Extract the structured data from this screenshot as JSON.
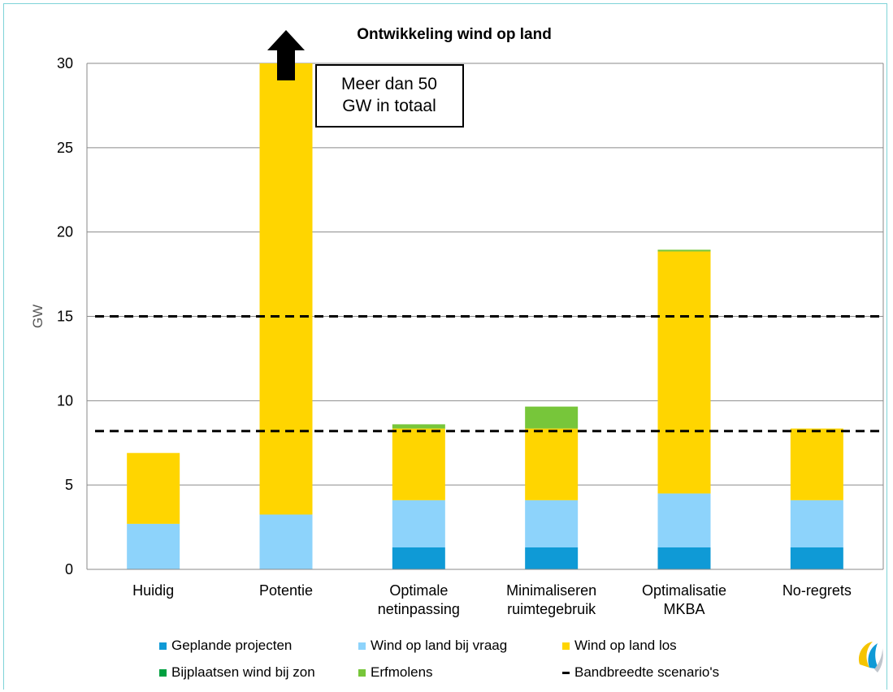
{
  "chart_data": {
    "type": "bar",
    "stacked": true,
    "title": "Ontwikkeling wind op land",
    "ylabel": "GW",
    "xlabel": "",
    "ylim": [
      0,
      30
    ],
    "yticks": [
      "0",
      "5",
      "10",
      "15",
      "20",
      "25",
      "30"
    ],
    "grid": true,
    "categories": [
      "Huidig",
      "Potentie",
      "Optimale netinpassing",
      "Minimaliseren ruimtegebruik",
      "Optimalisatie MKBA",
      "No-regrets"
    ],
    "category_lines": [
      [
        "Huidig"
      ],
      [
        "Potentie"
      ],
      [
        "Optimale",
        "netinpassing"
      ],
      [
        "Minimaliseren",
        "ruimtegebruik"
      ],
      [
        "Optimalisatie",
        "MKBA"
      ],
      [
        "No-regrets"
      ]
    ],
    "series": [
      {
        "name": "Geplande projecten",
        "color": "#0f9ad6",
        "values": [
          0,
          0,
          1.3,
          1.3,
          1.3,
          1.3
        ]
      },
      {
        "name": "Wind op land bij vraag",
        "color": "#8dd3fb",
        "values": [
          2.7,
          3.25,
          2.8,
          2.8,
          3.2,
          2.8
        ]
      },
      {
        "name": "Wind op land los",
        "color": "#ffd500",
        "values": [
          4.2,
          26.75,
          4.25,
          4.25,
          14.35,
          4.25
        ]
      },
      {
        "name": "Bijplaatsen wind bij zon",
        "color": "#00a040",
        "values": [
          0,
          0,
          0,
          0,
          0,
          0
        ]
      },
      {
        "name": "Erfmolens",
        "color": "#77c63a",
        "values": [
          0,
          0,
          0.25,
          1.3,
          0.1,
          0
        ]
      }
    ],
    "reference_lines": {
      "name": "Bandbreedte scenario's",
      "values": [
        8.2,
        15
      ],
      "style": "dashed",
      "color": "#000000"
    },
    "annotation": {
      "lines": [
        "Meer dan 50",
        "GW in totaal"
      ],
      "arrow": "up",
      "category": "Potentie"
    },
    "legend": {
      "placement": "bottom",
      "columns": 3
    }
  },
  "icons": {
    "logo": "logo-icon"
  }
}
